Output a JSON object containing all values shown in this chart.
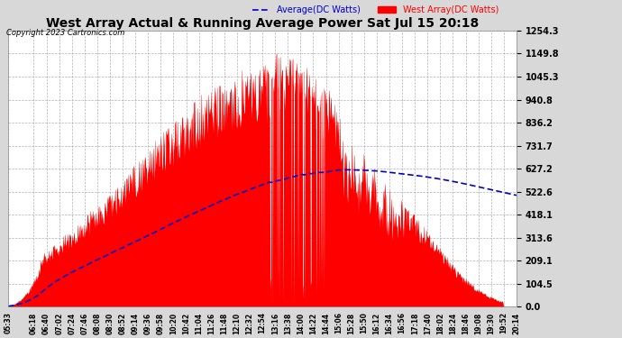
{
  "title": "West Array Actual & Running Average Power Sat Jul 15 20:18",
  "copyright": "Copyright 2023 Cartronics.com",
  "legend_avg": "Average(DC Watts)",
  "legend_west": "West Array(DC Watts)",
  "ymin": 0.0,
  "ymax": 1254.3,
  "yticks": [
    0.0,
    104.5,
    209.1,
    313.6,
    418.1,
    522.6,
    627.2,
    731.7,
    836.2,
    940.8,
    1045.3,
    1149.8,
    1254.3
  ],
  "fig_bg_color": "#d8d8d8",
  "plot_bg": "#ffffff",
  "grid_color": "#aaaaaa",
  "bar_color": "#ff0000",
  "avg_color": "#0000cc",
  "title_color": "#000000",
  "xtick_labels": [
    "05:33",
    "06:18",
    "06:40",
    "07:02",
    "07:24",
    "07:46",
    "08:08",
    "08:30",
    "08:52",
    "09:14",
    "09:36",
    "09:58",
    "10:20",
    "10:42",
    "11:04",
    "11:26",
    "11:48",
    "12:10",
    "12:32",
    "12:54",
    "13:16",
    "13:38",
    "14:00",
    "14:22",
    "14:44",
    "15:06",
    "15:28",
    "15:50",
    "16:12",
    "16:34",
    "16:56",
    "17:18",
    "17:40",
    "18:02",
    "18:24",
    "18:46",
    "19:08",
    "19:30",
    "19:52",
    "20:14"
  ],
  "num_points": 860,
  "seed": 10
}
